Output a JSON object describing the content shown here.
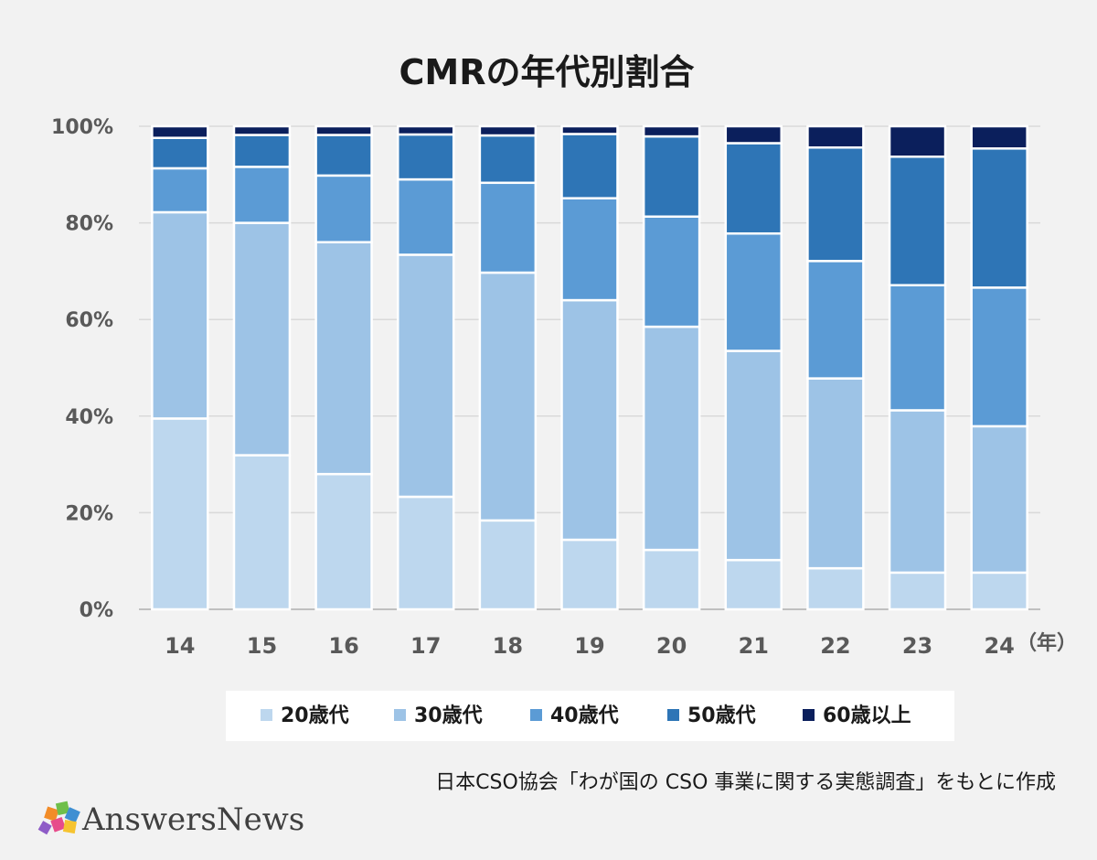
{
  "chart_data": {
    "type": "bar",
    "stacked": true,
    "title": "CMRの年代別割合",
    "categories": [
      "14",
      "15",
      "16",
      "17",
      "18",
      "19",
      "20",
      "21",
      "22",
      "23",
      "24"
    ],
    "x_unit_label": "（年）",
    "y_ticks": [
      "0%",
      "20%",
      "40%",
      "60%",
      "80%",
      "100%"
    ],
    "ylim": [
      0,
      100
    ],
    "grid": true,
    "legend_position": "bottom",
    "series": [
      {
        "name": "20歳代",
        "color": "#bdd7ee",
        "values": [
          39.5,
          31.9,
          28.0,
          23.3,
          18.4,
          14.4,
          12.3,
          10.2,
          8.5,
          7.6,
          7.6
        ]
      },
      {
        "name": "30歳代",
        "color": "#9dc3e6",
        "values": [
          42.7,
          48.1,
          48.0,
          50.1,
          51.3,
          49.6,
          46.2,
          43.3,
          39.3,
          33.6,
          30.3
        ]
      },
      {
        "name": "40歳代",
        "color": "#5b9bd5",
        "values": [
          9.1,
          11.6,
          13.8,
          15.6,
          18.6,
          21.1,
          22.8,
          24.3,
          24.3,
          25.9,
          28.7
        ]
      },
      {
        "name": "50歳代",
        "color": "#2e75b6",
        "values": [
          6.3,
          6.6,
          8.4,
          9.3,
          9.8,
          13.3,
          16.6,
          18.7,
          23.5,
          26.6,
          28.8
        ]
      },
      {
        "name": "60歳以上",
        "color": "#0b1f5c",
        "values": [
          2.4,
          1.8,
          1.8,
          1.7,
          1.9,
          1.6,
          2.1,
          3.5,
          4.4,
          6.3,
          4.6
        ]
      }
    ],
    "source": "日本CSO協会「わが国の CSO 事業に関する実態調査」をもとに作成"
  },
  "branding": {
    "logo_text": "AnswersNews",
    "logo_icon": "puzzle-pieces-icon"
  }
}
